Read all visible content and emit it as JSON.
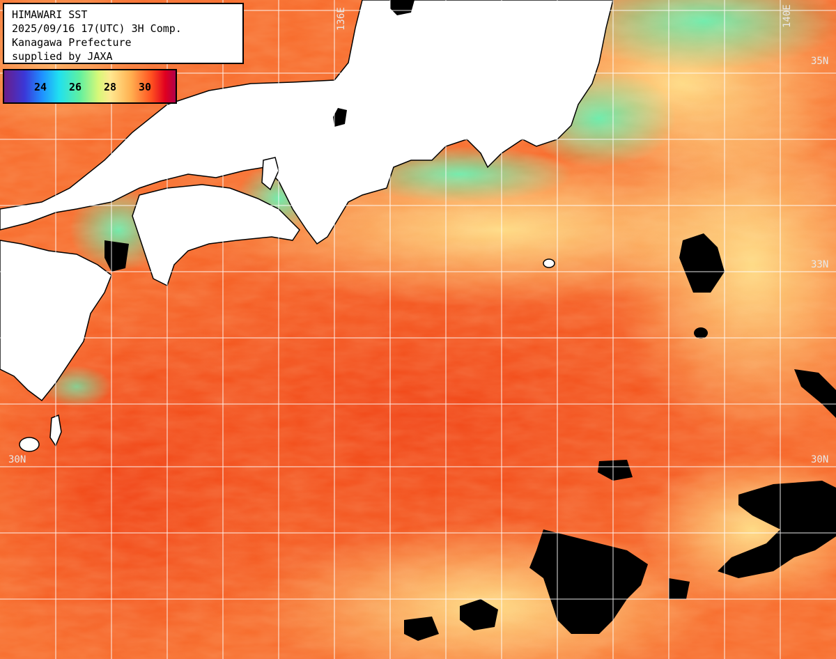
{
  "title": {
    "line1": "HIMAWARI SST",
    "line2": "2025/09/16 17(UTC) 3H Comp.",
    "line3": "Kanagawa Prefecture",
    "line4": "supplied by JAXA"
  },
  "legend": {
    "ticks": [
      "24",
      "26",
      "28",
      "30"
    ]
  },
  "graticule": {
    "lat_labels": [
      "35N",
      "33N",
      "30N",
      "30N"
    ],
    "lon_labels": [
      "136E",
      "140E"
    ]
  },
  "colors": {
    "land": "#ffffff",
    "cloud_mask": "#000000",
    "grid": "#ffffff",
    "sst_warm": "#ff5020",
    "sst_mid": "#ffb050",
    "sst_cool": "#5ff0a0"
  }
}
